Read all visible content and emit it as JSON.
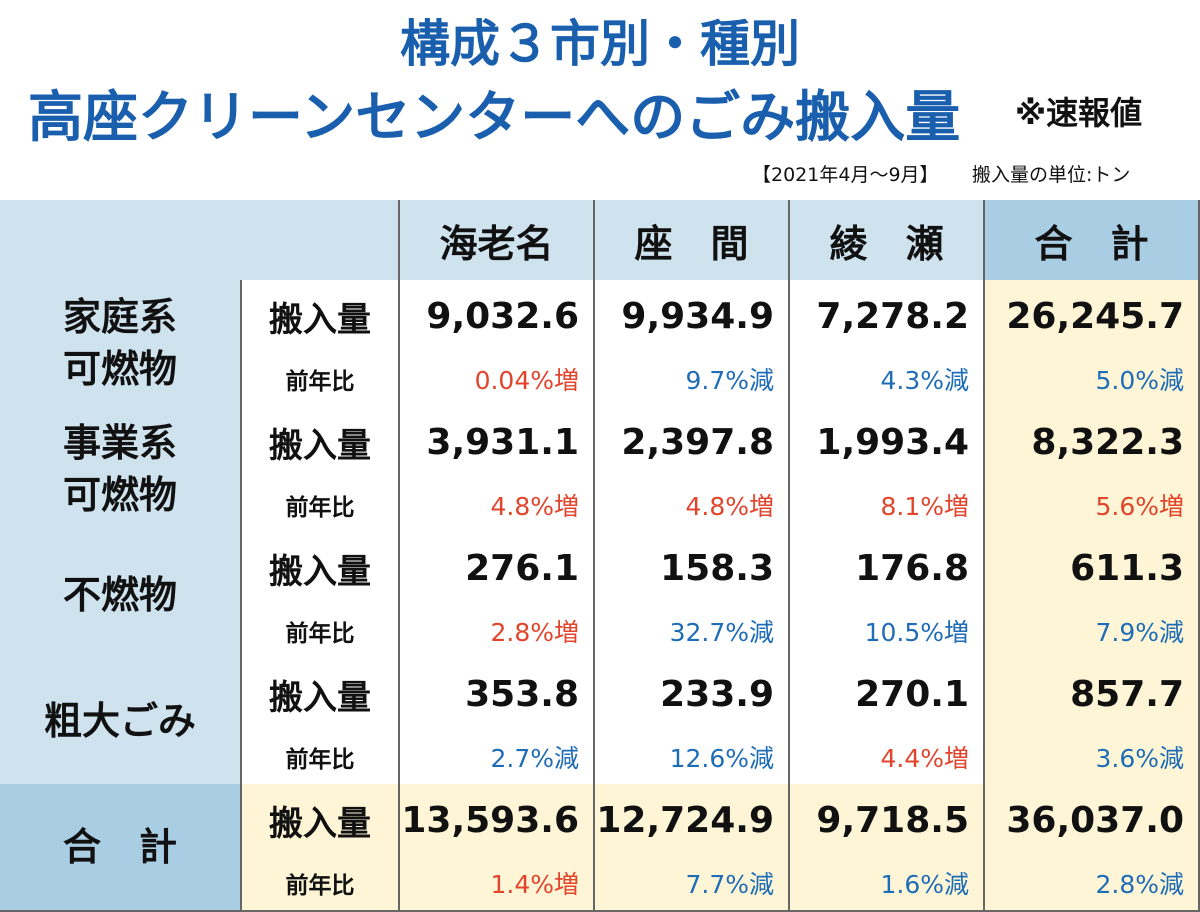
{
  "header": {
    "title_line1": "構成３市別・種別",
    "title_line2": "高座クリーンセンターへのごみ搬入量",
    "note": "※速報値",
    "period": "【2021年4月〜9月】",
    "unit": "搬入量の単位:トン"
  },
  "table": {
    "columns": [
      "海老名",
      "座　間",
      "綾　瀬",
      "合　計"
    ],
    "header_bg": "#cfe3ef",
    "total_header_bg": "#a9cde3",
    "total_bg": "#fdf5d5",
    "category_bg": "#cfe3ef",
    "total_category_bg": "#a9cde3",
    "groups": [
      {
        "category": [
          "家庭系",
          "可燃物"
        ],
        "amount_label": "搬入量",
        "amounts": [
          "9,032.6",
          "9,934.9",
          "7,278.2",
          "26,245.7"
        ],
        "ratio_label": "前年比",
        "ratios": [
          "0.04%増",
          "9.7%減",
          "4.3%減",
          "5.0%減"
        ],
        "ratio_colors": [
          "#e2452c",
          "#1f6db7",
          "#1f6db7",
          "#1f6db7"
        ]
      },
      {
        "category": [
          "事業系",
          "可燃物"
        ],
        "amount_label": "搬入量",
        "amounts": [
          "3,931.1",
          "2,397.8",
          "1,993.4",
          "8,322.3"
        ],
        "ratio_label": "前年比",
        "ratios": [
          "4.8%増",
          "4.8%増",
          "8.1%増",
          "5.6%増"
        ],
        "ratio_colors": [
          "#e2452c",
          "#e2452c",
          "#e2452c",
          "#e2452c"
        ]
      },
      {
        "category": [
          "不燃物"
        ],
        "amount_label": "搬入量",
        "amounts": [
          "276.1",
          "158.3",
          "176.8",
          "611.3"
        ],
        "ratio_label": "前年比",
        "ratios": [
          "2.8%増",
          "32.7%減",
          "10.5%増",
          "7.9%減"
        ],
        "ratio_colors": [
          "#e2452c",
          "#1f6db7",
          "#1f6db7",
          "#1f6db7"
        ]
      },
      {
        "category": [
          "粗大ごみ"
        ],
        "amount_label": "搬入量",
        "amounts": [
          "353.8",
          "233.9",
          "270.1",
          "857.7"
        ],
        "ratio_label": "前年比",
        "ratios": [
          "2.7%減",
          "12.6%減",
          "4.4%増",
          "3.6%減"
        ],
        "ratio_colors": [
          "#1f6db7",
          "#1f6db7",
          "#e2452c",
          "#1f6db7"
        ]
      },
      {
        "category": [
          "合　計"
        ],
        "amount_label": "搬入量",
        "amounts": [
          "13,593.6",
          "12,724.9",
          "9,718.5",
          "36,037.0"
        ],
        "ratio_label": "前年比",
        "ratios": [
          "1.4%増",
          "7.7%減",
          "1.6%減",
          "2.8%減"
        ],
        "ratio_colors": [
          "#e2452c",
          "#1f6db7",
          "#1f6db7",
          "#1f6db7"
        ]
      }
    ]
  }
}
